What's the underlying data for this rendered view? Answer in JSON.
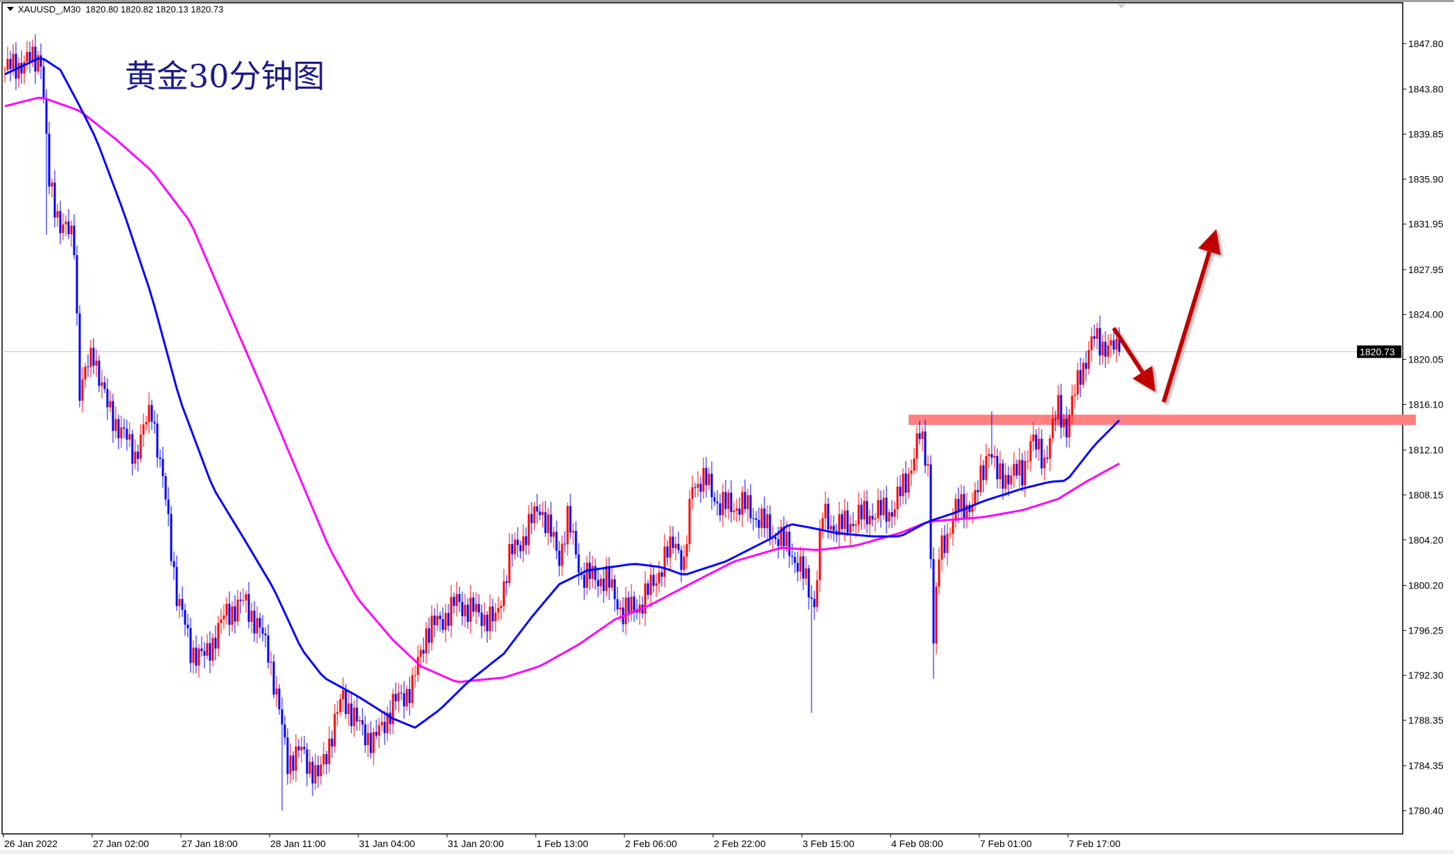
{
  "header": {
    "symbol": "XAUUSD_,M30",
    "ohlc": "1820.80 1820.82 1820.13 1820.73"
  },
  "annotation_title": "黄金30分钟图",
  "colors": {
    "bull": "#ff0000",
    "bear": "#0000ff",
    "ma_fast": "#0000ff",
    "ma_slow": "#ff00ff",
    "resistance_zone": "#ff8080",
    "arrows": "#c00000",
    "grid_line": "#c0c0c0"
  },
  "chart_data": {
    "type": "candlestick",
    "symbol": "XAUUSD_",
    "timeframe": "M30",
    "bull_color": "red",
    "bear_color": "blue",
    "ylim": [
      1778.5,
      1851.6
    ],
    "y_ticks": [
      "1847.80",
      "1843.80",
      "1839.85",
      "1835.90",
      "1831.95",
      "1827.95",
      "1824.00",
      "1820.05",
      "1816.10",
      "1812.10",
      "1808.15",
      "1804.20",
      "1800.20",
      "1796.25",
      "1792.30",
      "1788.35",
      "1784.35",
      "1780.40"
    ],
    "x_ticks": [
      "26 Jan 2022",
      "27 Jan 02:00",
      "27 Jan 18:00",
      "28 Jan 11:00",
      "31 Jan 04:00",
      "31 Jan 20:00",
      "1 Feb 13:00",
      "2 Feb 06:00",
      "2 Feb 22:00",
      "3 Feb 15:00",
      "4 Feb 08:00",
      "7 Feb 01:00",
      "7 Feb 17:00"
    ],
    "bars_between_x_ticks": 32,
    "current_price": "1820.73",
    "close_path": {
      "bar": [
        0,
        13,
        16,
        20,
        25,
        27,
        32,
        37,
        47,
        53,
        58,
        62,
        67,
        72,
        80,
        87,
        95,
        102,
        107,
        113,
        122,
        127,
        133,
        140,
        147,
        152,
        157,
        163,
        170,
        177,
        182,
        187,
        193,
        200,
        203,
        208,
        217,
        223,
        230,
        237,
        242,
        245,
        248,
        253,
        258,
        267,
        277,
        283,
        288,
        292,
        295,
        300,
        310,
        320,
        325,
        330,
        333,
        335,
        337,
        343,
        350,
        355,
        358,
        367,
        370,
        375,
        380,
        383,
        388,
        393,
        398,
        402
      ],
      "close": [
        1845.5,
        1846.7,
        1835.3,
        1832.1,
        1830.4,
        1817.4,
        1820.7,
        1815.8,
        1811.7,
        1815.8,
        1807.6,
        1799.5,
        1794.6,
        1793.8,
        1797.8,
        1798.7,
        1794.6,
        1784.8,
        1785.6,
        1783.2,
        1790.5,
        1788.1,
        1786.4,
        1789.7,
        1791.3,
        1796.2,
        1797.0,
        1798.7,
        1797.8,
        1797.0,
        1802.7,
        1804.4,
        1807.2,
        1802.7,
        1806.0,
        1801.1,
        1800.7,
        1797.8,
        1798.7,
        1801.9,
        1804.4,
        1801.5,
        1809.3,
        1809.3,
        1807.2,
        1807.2,
        1804.8,
        1803.5,
        1801.1,
        1798.7,
        1806.4,
        1805.2,
        1806.4,
        1806.8,
        1809.3,
        1813.3,
        1810.9,
        1795.4,
        1802.7,
        1806.8,
        1807.6,
        1812.5,
        1809.7,
        1810.1,
        1812.9,
        1811.3,
        1815.8,
        1814.1,
        1819.0,
        1821.9,
        1821.1,
        1820.73
      ]
    },
    "wick_spikes": [
      {
        "bar": 291,
        "low": 1789.0
      },
      {
        "bar": 335,
        "low": 1792.0
      },
      {
        "bar": 15,
        "low": 1831.0
      },
      {
        "bar": 100,
        "low": 1780.4
      },
      {
        "bar": 356,
        "high": 1815.5
      },
      {
        "bar": 394,
        "high": 1823.3
      }
    ],
    "ma_fast": {
      "bar": [
        0,
        13,
        20,
        27,
        33,
        43,
        53,
        63,
        75,
        87,
        97,
        107,
        115,
        127,
        140,
        148,
        157,
        167,
        180,
        190,
        200,
        210,
        227,
        237,
        245,
        260,
        277,
        283,
        290,
        300,
        313,
        323,
        333,
        343,
        353,
        367,
        377,
        383,
        393,
        402
      ],
      "value": [
        1845.1,
        1846.6,
        1845.5,
        1842.3,
        1839.4,
        1832.9,
        1825.6,
        1816.6,
        1808.8,
        1804.0,
        1799.9,
        1794.6,
        1792.1,
        1790.5,
        1788.5,
        1787.7,
        1789.3,
        1791.7,
        1794.2,
        1797.4,
        1800.3,
        1801.5,
        1802.1,
        1801.8,
        1801.1,
        1802.3,
        1804.4,
        1805.6,
        1805.3,
        1804.8,
        1804.5,
        1804.5,
        1805.8,
        1806.6,
        1807.6,
        1808.7,
        1809.3,
        1809.4,
        1812.5,
        1814.7
      ]
    },
    "ma_slow": {
      "bar": [
        0,
        13,
        27,
        40,
        53,
        67,
        80,
        93,
        107,
        117,
        127,
        140,
        150,
        163,
        180,
        193,
        207,
        220,
        233,
        247,
        263,
        280,
        293,
        307,
        323,
        333,
        343,
        353,
        367,
        380,
        390,
        402
      ],
      "value": [
        1842.3,
        1843.1,
        1841.9,
        1839.4,
        1836.6,
        1832.1,
        1824.7,
        1817.4,
        1809.3,
        1803.5,
        1799.1,
        1795.4,
        1793.1,
        1791.7,
        1792.1,
        1793.1,
        1795.0,
        1797.2,
        1798.5,
        1800.3,
        1802.3,
        1803.5,
        1803.3,
        1803.7,
        1804.8,
        1805.8,
        1806.0,
        1806.2,
        1806.8,
        1807.8,
        1809.3,
        1810.9
      ]
    },
    "resistance_zone": {
      "from_bar": 326,
      "price_low": 1814.3,
      "price_high": 1815.2
    },
    "arrows": [
      {
        "direction": "down",
        "from": {
          "bar": 400,
          "price": 1822.8
        },
        "to": {
          "bar": 415,
          "price": 1817.2
        }
      },
      {
        "direction": "up",
        "from": {
          "bar": 418,
          "price": 1816.3
        },
        "to": {
          "bar": 437,
          "price": 1831.5
        }
      }
    ]
  }
}
